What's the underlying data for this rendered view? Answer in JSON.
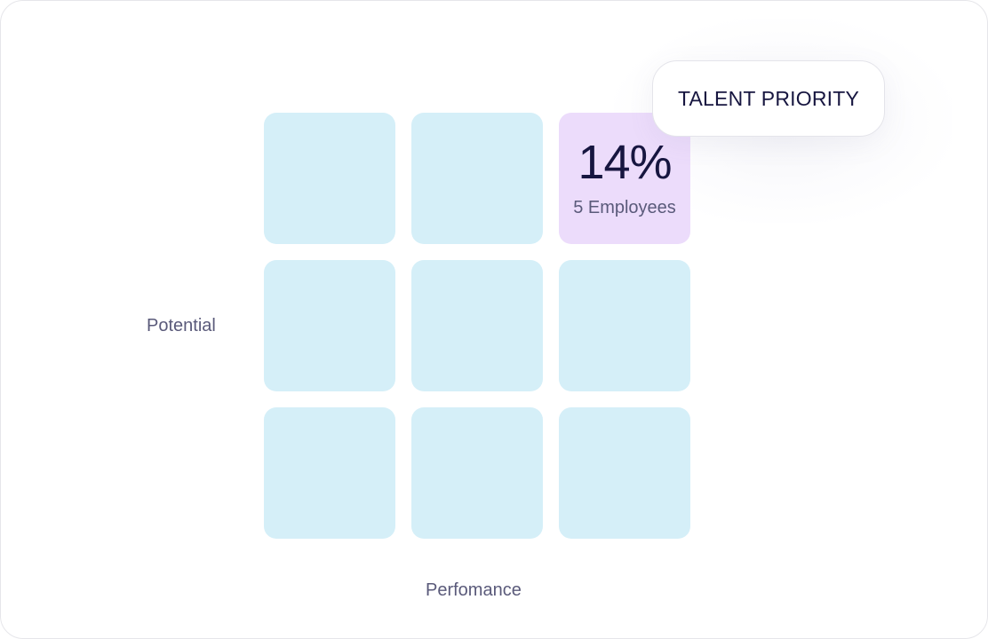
{
  "matrix": {
    "axis_y_label": "Potential",
    "axis_x_label": "Perfomance",
    "highlight": {
      "percent": "14%",
      "employees": "5 Employees"
    },
    "tooltip_label": "TALENT PRIORITY"
  },
  "colors": {
    "cell": "#d5eff8",
    "highlight": "#ecdcfb",
    "text_dark": "#171640",
    "text_muted": "#5a5a7a"
  }
}
